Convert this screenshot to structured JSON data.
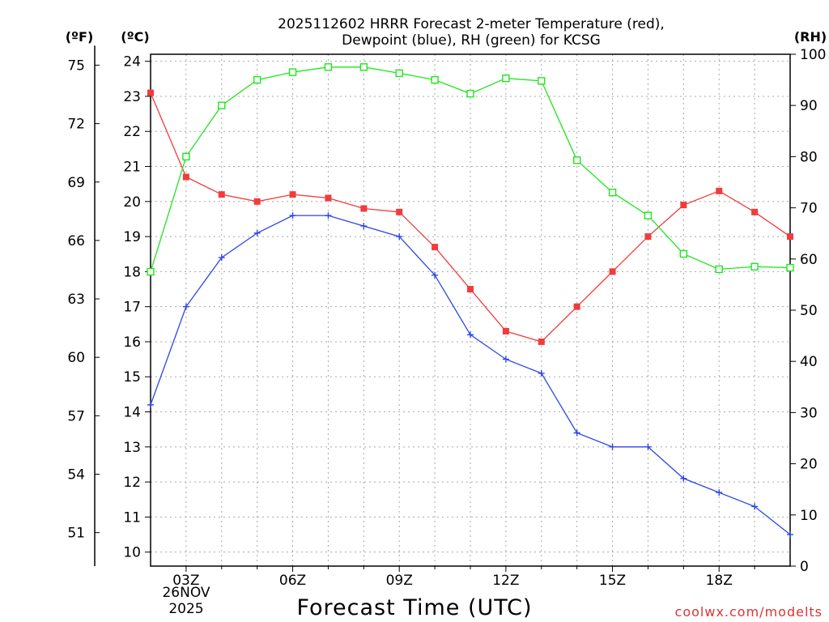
{
  "chart_data": {
    "type": "line",
    "title_line1": "2025112602 HRRR Forecast 2-meter Temperature (red),",
    "title_line2": "Dewpoint (blue), RH (green) for KCSG",
    "xlabel": "Forecast Time (UTC)",
    "credit": "coolwx.com/modelts",
    "units": {
      "fahrenheit": "(ºF)",
      "celsius": "(ºC)",
      "rh": "(RH)"
    },
    "x_range": [
      2,
      20
    ],
    "y_celsius_range": [
      9.6,
      24.2
    ],
    "y_rh_range": [
      0,
      100
    ],
    "x_ticks": [
      {
        "x": 3,
        "label": "03Z"
      },
      {
        "x": 6,
        "label": "06Z"
      },
      {
        "x": 9,
        "label": "09Z"
      },
      {
        "x": 12,
        "label": "12Z"
      },
      {
        "x": 15,
        "label": "15Z"
      },
      {
        "x": 18,
        "label": "18Z"
      }
    ],
    "date_label_line1": "26NOV",
    "date_label_line2": "2025",
    "celsius_ticks": [
      10,
      11,
      12,
      13,
      14,
      15,
      16,
      17,
      18,
      19,
      20,
      21,
      22,
      23,
      24
    ],
    "fahrenheit_ticks": [
      51,
      54,
      57,
      60,
      63,
      66,
      69,
      72,
      75
    ],
    "rh_ticks": [
      0,
      10,
      20,
      30,
      40,
      50,
      60,
      70,
      80,
      90,
      100
    ],
    "x": [
      2,
      3,
      4,
      5,
      6,
      7,
      8,
      9,
      10,
      11,
      12,
      13,
      14,
      15,
      16,
      17,
      18,
      19,
      20
    ],
    "series": [
      {
        "name": "Temperature",
        "axis": "celsius",
        "color": "#f03c3c",
        "marker": "filled-square",
        "values": [
          23.1,
          20.7,
          20.2,
          20.0,
          20.2,
          20.1,
          19.8,
          19.7,
          18.7,
          17.5,
          16.3,
          16.0,
          17.0,
          18.0,
          19.0,
          19.9,
          20.3,
          19.7,
          19.0
        ]
      },
      {
        "name": "Dewpoint",
        "axis": "celsius",
        "color": "#2d46e6",
        "marker": "plus",
        "values": [
          14.2,
          17.0,
          18.4,
          19.1,
          19.6,
          19.6,
          19.3,
          19.0,
          17.9,
          16.2,
          15.5,
          15.1,
          13.4,
          13.0,
          13.0,
          12.1,
          11.7,
          11.3,
          10.5
        ]
      },
      {
        "name": "RH",
        "axis": "rh",
        "color": "#1ee61e",
        "marker": "open-square",
        "values": [
          57.5,
          80.0,
          90.0,
          95.0,
          96.5,
          97.5,
          97.5,
          96.3,
          95.0,
          92.3,
          95.3,
          94.8,
          79.3,
          73.0,
          68.5,
          61.0,
          58.0,
          58.5,
          58.3
        ]
      }
    ]
  }
}
